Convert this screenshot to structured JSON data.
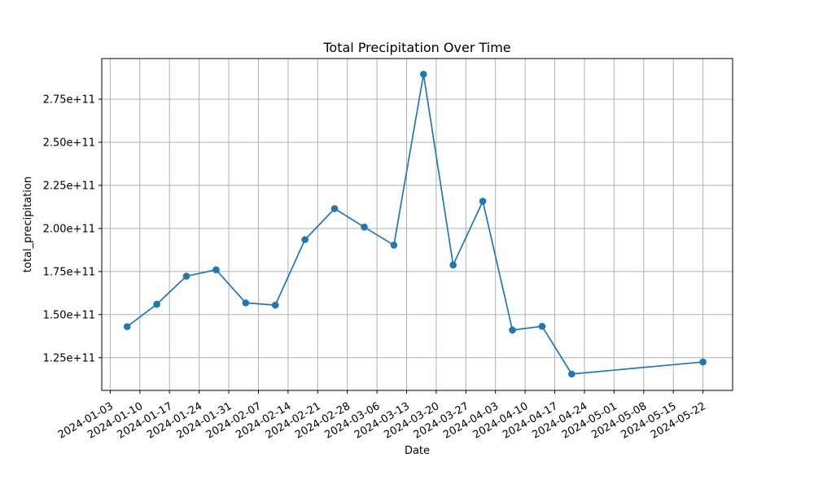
{
  "chart_data": {
    "type": "line",
    "title": "Total Precipitation Over Time",
    "xlabel": "Date",
    "ylabel": "total_precipitation",
    "grid": true,
    "series": [
      {
        "color": "#1f77b4",
        "marker": "circle",
        "points": [
          {
            "x": "2024-01-07",
            "y": 143000000000
          },
          {
            "x": "2024-01-14",
            "y": 156000000000
          },
          {
            "x": "2024-01-21",
            "y": 172300000000
          },
          {
            "x": "2024-01-28",
            "y": 176000000000
          },
          {
            "x": "2024-02-04",
            "y": 156800000000
          },
          {
            "x": "2024-02-11",
            "y": 155500000000
          },
          {
            "x": "2024-02-18",
            "y": 193500000000
          },
          {
            "x": "2024-02-25",
            "y": 211500000000
          },
          {
            "x": "2024-03-03",
            "y": 200800000000
          },
          {
            "x": "2024-03-10",
            "y": 190300000000
          },
          {
            "x": "2024-03-17",
            "y": 289500000000
          },
          {
            "x": "2024-03-24",
            "y": 178800000000
          },
          {
            "x": "2024-03-31",
            "y": 215800000000
          },
          {
            "x": "2024-04-07",
            "y": 141000000000
          },
          {
            "x": "2024-04-14",
            "y": 143200000000
          },
          {
            "x": "2024-04-21",
            "y": 115500000000
          },
          {
            "x": "2024-05-22",
            "y": 122500000000
          }
        ]
      }
    ],
    "xlim": [
      "2024-01-01",
      "2024-05-29"
    ],
    "ylim": [
      106000000000,
      298600000000
    ],
    "xticks": [
      "2024-01-03",
      "2024-01-10",
      "2024-01-17",
      "2024-01-24",
      "2024-01-31",
      "2024-02-07",
      "2024-02-14",
      "2024-02-21",
      "2024-02-28",
      "2024-03-06",
      "2024-03-13",
      "2024-03-20",
      "2024-03-27",
      "2024-04-03",
      "2024-04-10",
      "2024-04-17",
      "2024-04-24",
      "2024-05-01",
      "2024-05-08",
      "2024-05-15",
      "2024-05-22"
    ],
    "yticks": [
      125000000000,
      150000000000,
      175000000000,
      200000000000,
      225000000000,
      250000000000,
      275000000000
    ],
    "ytick_labels": [
      "1.25e+11",
      "1.50e+11",
      "1.75e+11",
      "2.00e+11",
      "2.25e+11",
      "2.50e+11",
      "2.75e+11"
    ]
  }
}
